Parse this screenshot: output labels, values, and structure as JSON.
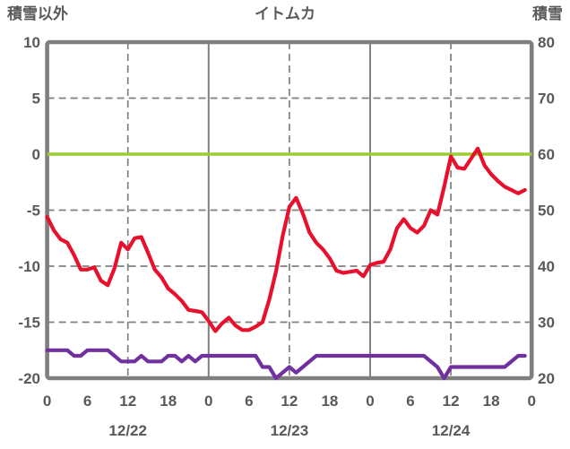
{
  "chart_data": {
    "type": "line",
    "title": "イトムカ",
    "left_axis": {
      "label": "積雪以外",
      "min": -20,
      "max": 10,
      "ticks": [
        "10",
        "5",
        "0",
        "-5",
        "-10",
        "-15",
        "-20"
      ],
      "tick_values": [
        10,
        5,
        0,
        -5,
        -10,
        -15,
        -20
      ]
    },
    "right_axis": {
      "label": "積雪",
      "min": 20,
      "max": 80,
      "ticks": [
        "80",
        "70",
        "60",
        "50",
        "40",
        "30",
        "20"
      ],
      "tick_values": [
        80,
        70,
        60,
        50,
        40,
        30,
        20
      ]
    },
    "x_axis": {
      "unit": "hour",
      "range_hours": [
        0,
        72
      ],
      "tick_hours": [
        0,
        6,
        12,
        18,
        24,
        30,
        36,
        42,
        48,
        54,
        60,
        66,
        72
      ],
      "tick_labels": [
        "0",
        "6",
        "12",
        "18",
        "0",
        "6",
        "12",
        "18",
        "0",
        "6",
        "12",
        "18",
        "0"
      ],
      "date_labels": [
        "12/22",
        "12/23",
        "12/24"
      ],
      "date_center_hours": [
        12,
        36,
        60
      ],
      "noon_gridline_hours": [
        12,
        36,
        60
      ],
      "midnight_gridline_hours": [
        24,
        48
      ]
    },
    "zero_line": {
      "axis": "left",
      "value": 0,
      "color": "#9ACD32"
    },
    "grid": {
      "on": true,
      "dashed_left_values": [
        5,
        -5,
        -10,
        -15
      ],
      "color": "#808080"
    },
    "legend_position": "none",
    "series": [
      {
        "name": "積雪以外",
        "axis": "left",
        "color": "#E8112D",
        "values": [
          -5.6,
          -6.8,
          -7.6,
          -7.9,
          -9.0,
          -10.3,
          -10.3,
          -10.1,
          -11.3,
          -11.7,
          -10.2,
          -7.9,
          -8.5,
          -7.5,
          -7.4,
          -8.8,
          -10.3,
          -11.0,
          -12.0,
          -12.5,
          -13.1,
          -13.9,
          -14.0,
          -14.1,
          -14.9,
          -15.8,
          -15.1,
          -14.6,
          -15.3,
          -15.7,
          -15.7,
          -15.4,
          -15.0,
          -13.0,
          -10.5,
          -7.3,
          -4.7,
          -3.9,
          -5.3,
          -7.0,
          -7.9,
          -8.5,
          -9.3,
          -10.4,
          -10.6,
          -10.5,
          -10.4,
          -10.9,
          -9.9,
          -9.7,
          -9.6,
          -8.5,
          -6.6,
          -5.8,
          -6.6,
          -7.0,
          -6.4,
          -5.0,
          -5.4,
          -2.9,
          -0.2,
          -1.2,
          -1.3,
          -0.4,
          0.5,
          -1.0,
          -1.8,
          -2.4,
          -2.9,
          -3.2,
          -3.5,
          -3.2
        ]
      },
      {
        "name": "積雪",
        "axis": "right",
        "color": "#7030A0",
        "values": [
          25,
          25,
          25,
          25,
          24,
          24,
          25,
          25,
          25,
          25,
          24,
          23,
          23,
          23,
          24,
          23,
          23,
          23,
          24,
          24,
          23,
          24,
          23,
          24,
          24,
          24,
          24,
          24,
          24,
          24,
          24,
          24,
          22,
          22,
          20,
          21,
          22,
          21,
          22,
          23,
          24,
          24,
          24,
          24,
          24,
          24,
          24,
          24,
          24,
          24,
          24,
          24,
          24,
          24,
          24,
          24,
          24,
          23,
          22,
          20,
          22,
          22,
          22,
          22,
          22,
          22,
          22,
          22,
          22,
          23,
          24,
          24
        ]
      }
    ],
    "colors": {
      "border": "#7F7F7F",
      "gridline": "#808080",
      "text": "#595959",
      "red_series": "#E8112D",
      "purple_series": "#7030A0",
      "zero_line": "#9ACD32"
    }
  }
}
